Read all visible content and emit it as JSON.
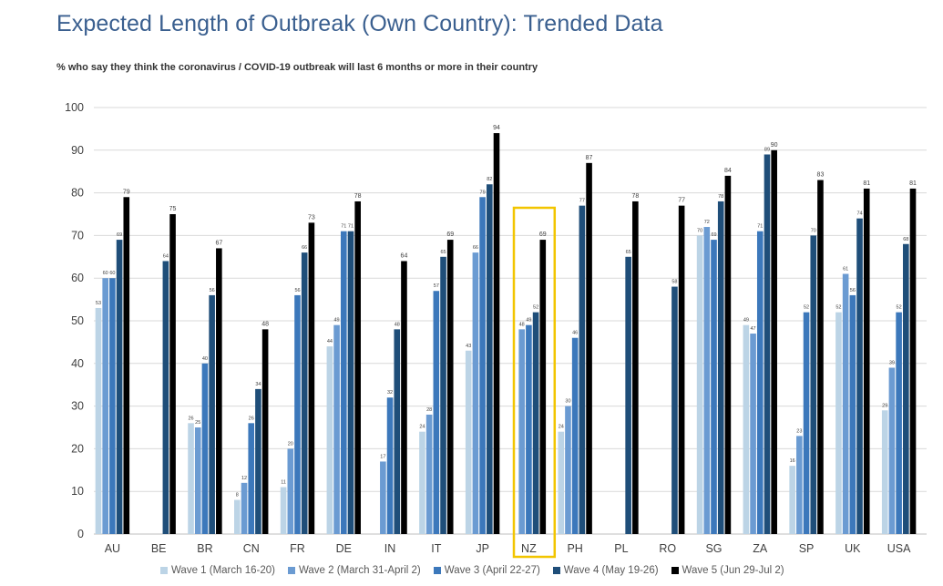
{
  "title": "Expected Length of Outbreak (Own Country): Trended Data",
  "subtitle": "% who say they think the coronavirus / COVID-19 outbreak will last 6 months or more in their country",
  "chart_data": {
    "type": "bar",
    "ylim": [
      0,
      100
    ],
    "yticks": [
      "0",
      "10",
      "20",
      "30",
      "40",
      "50",
      "60",
      "70",
      "80",
      "90",
      "100"
    ],
    "grid": true,
    "legend_position": "bottom",
    "highlight": "NZ",
    "categories": [
      "AU",
      "BE",
      "BR",
      "CN",
      "FR",
      "DE",
      "IN",
      "IT",
      "JP",
      "NZ",
      "PH",
      "PL",
      "RO",
      "SG",
      "ZA",
      "SP",
      "UK",
      "USA"
    ],
    "series": [
      {
        "name": "Wave 1 (March 16-20)",
        "color": "#bcd4e6",
        "values": [
          53,
          null,
          26,
          8,
          11,
          44,
          null,
          24,
          43,
          null,
          24,
          null,
          null,
          70,
          49,
          16,
          52,
          29
        ]
      },
      {
        "name": "Wave 2 (March 31-April 2)",
        "color": "#6b9bd2",
        "values": [
          60,
          null,
          25,
          12,
          20,
          49,
          17,
          28,
          66,
          48,
          30,
          null,
          null,
          72,
          47,
          23,
          61,
          39
        ]
      },
      {
        "name": "Wave 3 (April 22-27)",
        "color": "#3c78bb",
        "values": [
          60,
          null,
          40,
          26,
          56,
          71,
          32,
          57,
          79,
          49,
          46,
          null,
          null,
          69,
          71,
          52,
          56,
          52
        ]
      },
      {
        "name": "Wave 4 (May 19-26)",
        "color": "#1f4e79",
        "values": [
          69,
          64,
          56,
          34,
          66,
          71,
          48,
          65,
          82,
          52,
          77,
          65,
          58,
          78,
          89,
          70,
          74,
          68
        ]
      },
      {
        "name": "Wave 5 (Jun 29-Jul 2)",
        "color": "#000000",
        "values": [
          79,
          75,
          67,
          48,
          73,
          78,
          64,
          69,
          94,
          69,
          87,
          78,
          77,
          84,
          90,
          83,
          81,
          81
        ]
      }
    ]
  }
}
